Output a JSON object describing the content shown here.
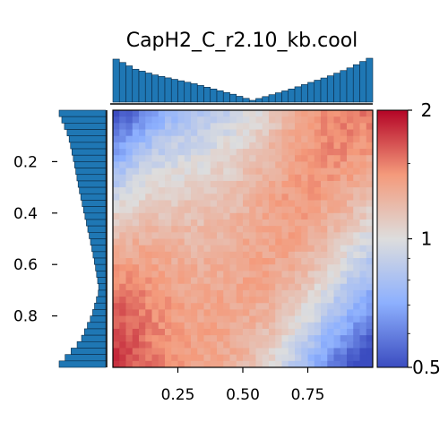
{
  "chart_data": {
    "type": "heatmap",
    "title": "CapH2_C_r2.10_kb.cool",
    "grid_size": 40,
    "x_ticks": [
      "0.25",
      "0.50",
      "0.75"
    ],
    "x_tick_values": [
      0.25,
      0.5,
      0.75
    ],
    "y_ticks": [
      "0.2",
      "0.4",
      "0.6",
      "0.8"
    ],
    "y_tick_values": [
      0.2,
      0.4,
      0.6,
      0.8
    ],
    "colorbar_ticks": [
      "2",
      "1",
      "0.5"
    ],
    "colorbar_tick_values": [
      2,
      1,
      0.5
    ],
    "colorbar_scale": "log",
    "colorbar_range": [
      0.5,
      2
    ],
    "colormap": "coolwarm",
    "colors": {
      "low": "#3b4cc0",
      "mid": "#dddddd",
      "high": "#b40426",
      "marginal_bars": "#1f77b4",
      "marginal_edge": "#0a2a45"
    },
    "top_marginal": {
      "x": [
        0.0125,
        0.0875,
        0.1625,
        0.2375,
        0.3125,
        0.3875,
        0.4625,
        0.5375,
        0.6125,
        0.6875,
        0.7625,
        0.8375,
        0.9125,
        0.9875
      ],
      "values": [
        0.98,
        0.75,
        0.62,
        0.52,
        0.42,
        0.3,
        0.18,
        0.04,
        0.17,
        0.3,
        0.45,
        0.6,
        0.78,
        1.0
      ]
    },
    "left_marginal": {
      "y": [
        0.0125,
        0.1,
        0.2,
        0.3,
        0.4,
        0.5,
        0.6,
        0.7,
        0.8,
        0.9,
        0.9875
      ],
      "values": [
        1.0,
        0.8,
        0.68,
        0.58,
        0.46,
        0.34,
        0.23,
        0.14,
        0.3,
        0.55,
        1.0
      ]
    }
  }
}
